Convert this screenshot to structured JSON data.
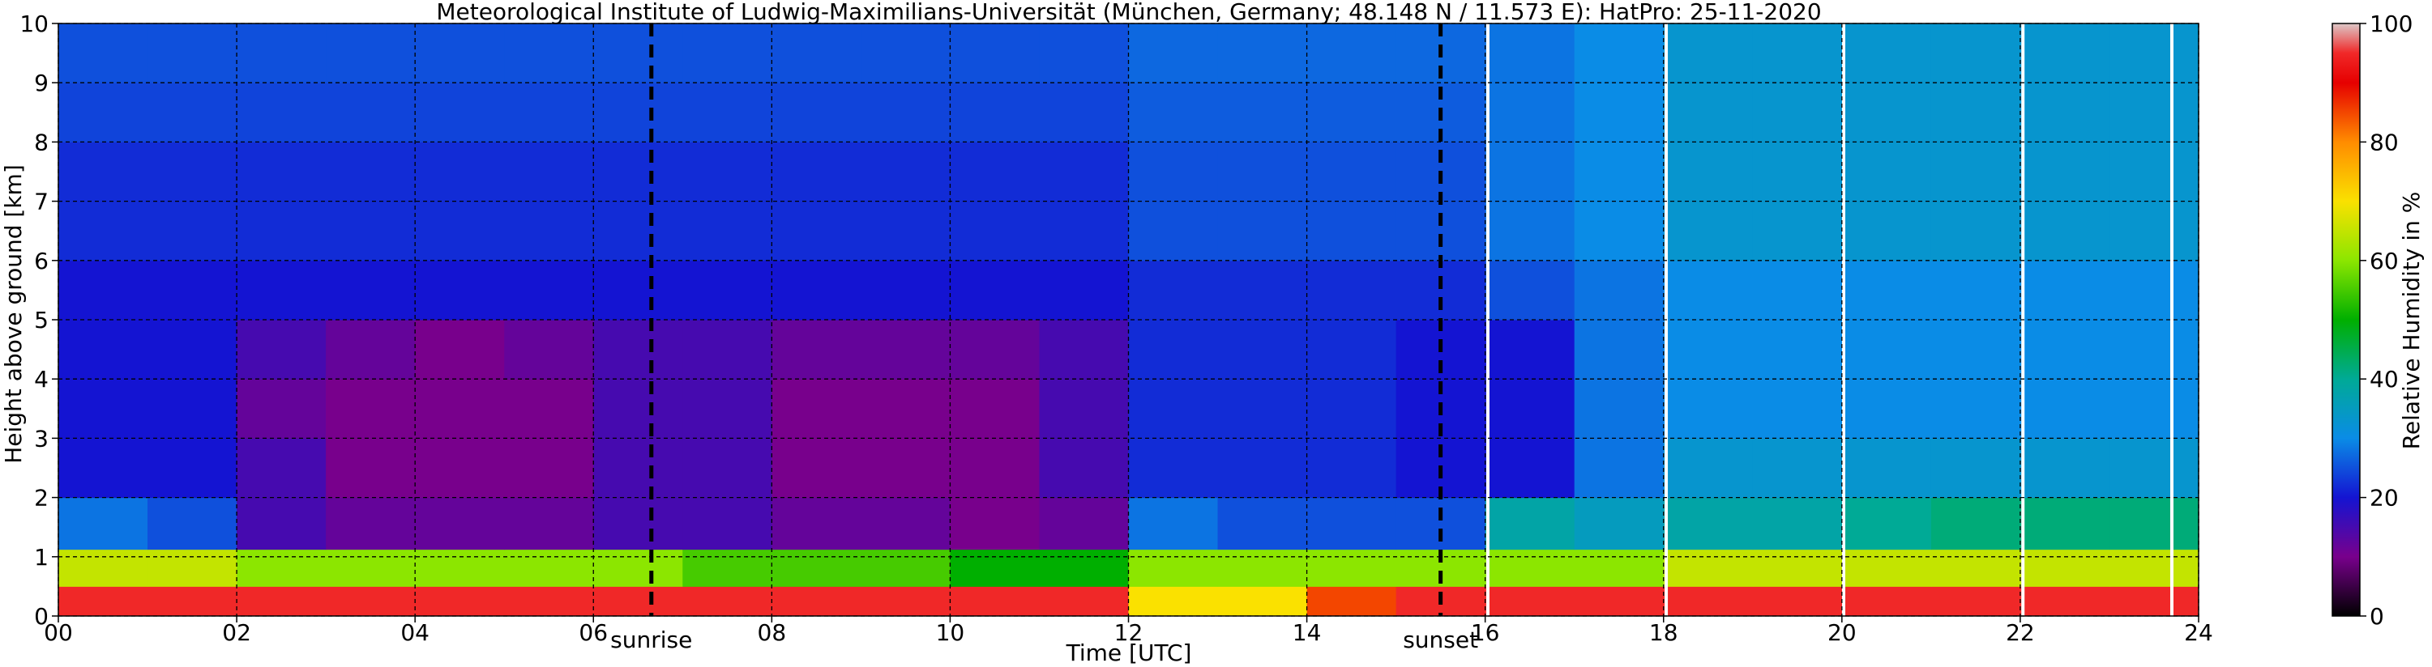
{
  "chart_data": {
    "type": "heatmap",
    "title": "Meteorological Institute of Ludwig-Maximilians-Universität (München, Germany; 48.148 N / 11.573 E):    HatPro: 25-11-2020",
    "xlabel": "Time [UTC]",
    "ylabel": "Height above ground [km]",
    "xlim": [
      0,
      24
    ],
    "ylim": [
      0,
      10
    ],
    "xticks": [
      0,
      2,
      4,
      6,
      8,
      10,
      12,
      14,
      16,
      18,
      20,
      22,
      24
    ],
    "xtick_labels": [
      "00",
      "02",
      "04",
      "06",
      "08",
      "10",
      "12",
      "14",
      "16",
      "18",
      "20",
      "22",
      "24"
    ],
    "yticks": [
      0,
      1,
      2,
      3,
      4,
      5,
      6,
      7,
      8,
      9,
      10
    ],
    "ytick_labels": [
      "0",
      "1",
      "2",
      "3",
      "4",
      "5",
      "6",
      "7",
      "8",
      "9",
      "10"
    ],
    "grid": true,
    "colorbar": {
      "label": "Relative Humidity in %",
      "min": 0,
      "max": 100,
      "ticks": [
        0,
        20,
        40,
        60,
        80,
        100
      ],
      "tick_labels": [
        "0",
        "20",
        "40",
        "60",
        "80",
        "100"
      ]
    },
    "annotations": [
      {
        "label": "sunrise",
        "x": 6.65
      },
      {
        "label": "sunset",
        "x": 15.5
      }
    ],
    "data_gaps_x": [
      16.03,
      18.03,
      20.02,
      22.03,
      23.7
    ],
    "time_columns": [
      0,
      1,
      2,
      3,
      4,
      5,
      6,
      7,
      8,
      9,
      10,
      11,
      12,
      13,
      14,
      15,
      16,
      17,
      18,
      19,
      20,
      21,
      22,
      23
    ],
    "height_rows": [
      0.25,
      0.75,
      1.5,
      2.5,
      3.5,
      4.5,
      5.5,
      6.5,
      7.5,
      8.5,
      9.5
    ],
    "values": [
      [
        95,
        95,
        95,
        95,
        95,
        95,
        95,
        95,
        95,
        95,
        95,
        95,
        70,
        70,
        85,
        95,
        95,
        95,
        95,
        95,
        95,
        95,
        95,
        95
      ],
      [
        65,
        65,
        60,
        60,
        60,
        60,
        60,
        55,
        55,
        55,
        50,
        50,
        60,
        60,
        60,
        60,
        60,
        60,
        65,
        65,
        65,
        65,
        65,
        65
      ],
      [
        28,
        25,
        15,
        12,
        12,
        12,
        15,
        15,
        12,
        12,
        10,
        12,
        28,
        25,
        25,
        25,
        38,
        35,
        38,
        38,
        40,
        42,
        42,
        42
      ],
      [
        20,
        20,
        15,
        10,
        10,
        10,
        15,
        15,
        10,
        10,
        10,
        15,
        22,
        22,
        22,
        20,
        20,
        28,
        33,
        33,
        33,
        33,
        33,
        33
      ],
      [
        20,
        20,
        12,
        10,
        10,
        10,
        15,
        15,
        10,
        10,
        10,
        15,
        22,
        22,
        22,
        20,
        20,
        28,
        30,
        30,
        30,
        30,
        30,
        30
      ],
      [
        20,
        20,
        15,
        12,
        10,
        12,
        15,
        15,
        12,
        12,
        12,
        15,
        22,
        22,
        22,
        20,
        20,
        28,
        30,
        30,
        30,
        30,
        30,
        30
      ],
      [
        20,
        20,
        20,
        20,
        20,
        20,
        20,
        20,
        20,
        20,
        20,
        20,
        22,
        22,
        22,
        22,
        25,
        28,
        30,
        30,
        30,
        30,
        30,
        30
      ],
      [
        22,
        22,
        22,
        22,
        22,
        22,
        22,
        22,
        22,
        22,
        22,
        22,
        25,
        25,
        25,
        25,
        28,
        30,
        33,
        33,
        33,
        33,
        33,
        33
      ],
      [
        22,
        22,
        22,
        22,
        22,
        22,
        22,
        22,
        22,
        22,
        22,
        22,
        25,
        25,
        25,
        25,
        28,
        30,
        33,
        33,
        33,
        33,
        33,
        33
      ],
      [
        24,
        24,
        24,
        24,
        24,
        24,
        24,
        24,
        24,
        24,
        24,
        24,
        26,
        26,
        26,
        26,
        28,
        30,
        33,
        33,
        33,
        33,
        33,
        33
      ],
      [
        25,
        25,
        25,
        25,
        25,
        25,
        25,
        25,
        25,
        25,
        25,
        25,
        27,
        27,
        27,
        27,
        28,
        30,
        33,
        33,
        33,
        33,
        33,
        33
      ]
    ]
  }
}
